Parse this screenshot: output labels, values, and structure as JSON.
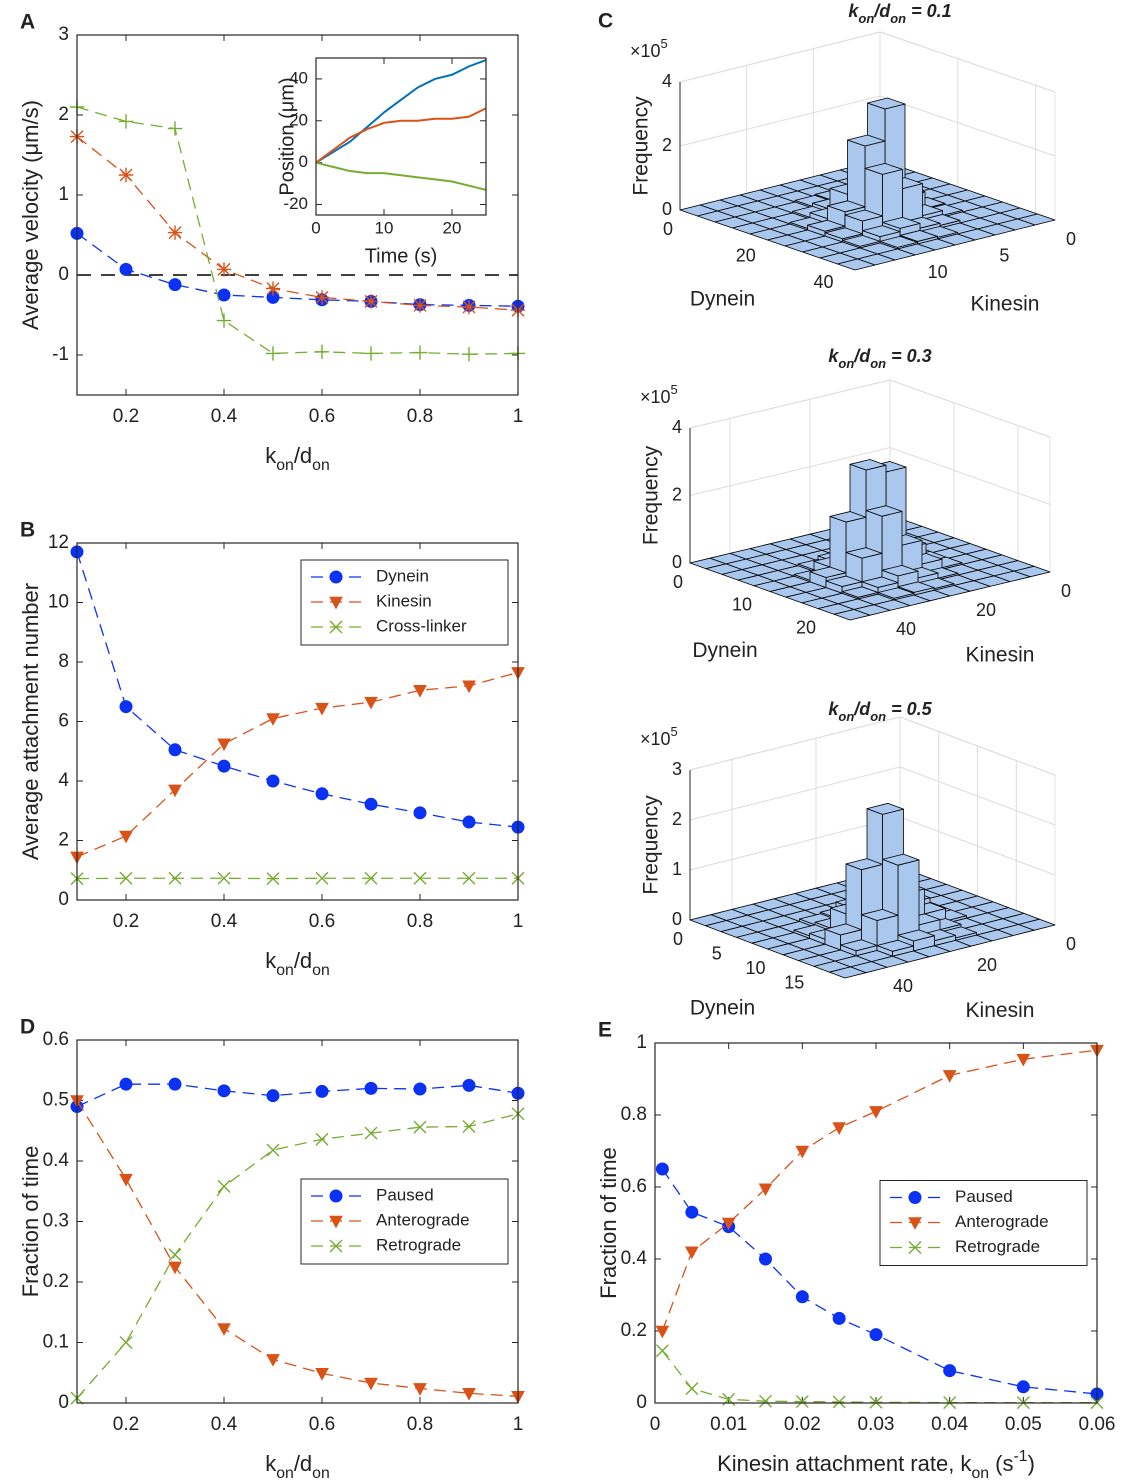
{
  "chart_data": [
    {
      "type": "line",
      "panel_label": "A",
      "x": [
        0.1,
        0.2,
        0.3,
        0.4,
        0.5,
        0.6,
        0.7,
        0.8,
        0.9,
        1
      ],
      "xlim": [
        0.1,
        1
      ],
      "xticks": [
        0.2,
        0.4,
        0.6,
        0.8,
        1
      ],
      "ylim": [
        -1.5,
        3
      ],
      "yticks": [
        -1,
        0,
        1,
        2,
        3
      ],
      "xlabel": [
        {
          "text": "k"
        },
        {
          "text": "on",
          "shift": "sub"
        },
        {
          "text": "/d"
        },
        {
          "text": "on",
          "shift": "sub"
        }
      ],
      "ylabel": "Average velocity (μm/s)",
      "reference_line": 0,
      "series": [
        {
          "color": "#0b31f3",
          "marker": "circle",
          "values": [
            0.52,
            0.07,
            -0.12,
            -0.25,
            -0.28,
            -0.31,
            -0.33,
            -0.37,
            -0.38,
            -0.39
          ]
        },
        {
          "color": "#d95319",
          "marker": "asterisk",
          "values": [
            1.73,
            1.25,
            0.53,
            0.07,
            -0.17,
            -0.28,
            -0.33,
            -0.38,
            -0.4,
            -0.44
          ]
        },
        {
          "color": "#77ac30",
          "marker": "plus",
          "values": [
            2.1,
            1.92,
            1.83,
            -0.57,
            -0.98,
            -0.96,
            -0.98,
            -0.97,
            -0.99,
            -0.98
          ]
        }
      ],
      "inset": {
        "type": "line",
        "x": [
          0,
          2.5,
          5,
          7.5,
          10,
          12.5,
          15,
          17.5,
          20,
          22.5,
          25
        ],
        "xlim": [
          0,
          25
        ],
        "xticks": [
          0,
          10,
          20
        ],
        "ylim": [
          -25,
          50
        ],
        "yticks": [
          -20,
          0,
          20,
          40
        ],
        "xlabel": "Time (s)",
        "ylabel": "Position (μm)",
        "series": [
          {
            "color": "#0072bd",
            "values": [
              0,
              5,
              10,
              17,
              24,
              30,
              36,
              40,
              42,
              46,
              49
            ]
          },
          {
            "color": "#d95319",
            "values": [
              0,
              6,
              12,
              16,
              19,
              20,
              20,
              21,
              21,
              22,
              26
            ]
          },
          {
            "color": "#77ac30",
            "values": [
              0,
              -2,
              -4,
              -5,
              -5,
              -6,
              -7,
              -8,
              -9,
              -11,
              -13
            ]
          }
        ]
      }
    },
    {
      "type": "line",
      "panel_label": "B",
      "x": [
        0.1,
        0.2,
        0.3,
        0.4,
        0.5,
        0.6,
        0.7,
        0.8,
        0.9,
        1
      ],
      "xlim": [
        0.1,
        1
      ],
      "xticks": [
        0.2,
        0.4,
        0.6,
        0.8,
        1
      ],
      "ylim": [
        0,
        12
      ],
      "yticks": [
        0,
        2,
        4,
        6,
        8,
        10,
        12
      ],
      "xlabel": [
        {
          "text": "k"
        },
        {
          "text": "on",
          "shift": "sub"
        },
        {
          "text": "/d"
        },
        {
          "text": "on",
          "shift": "sub"
        }
      ],
      "ylabel": "Average attachment number",
      "legend": "northeast",
      "series": [
        {
          "name": "Dynein",
          "color": "#0b31f3",
          "marker": "circle",
          "values": [
            11.7,
            6.5,
            5.05,
            4.5,
            4.0,
            3.57,
            3.22,
            2.93,
            2.62,
            2.45
          ]
        },
        {
          "name": "Kinesin",
          "color": "#d95319",
          "marker": "triangle-down",
          "values": [
            1.45,
            2.15,
            3.7,
            5.25,
            6.1,
            6.45,
            6.65,
            7.05,
            7.2,
            7.65
          ]
        },
        {
          "name": "Cross-linker",
          "color": "#77ac30",
          "marker": "x",
          "values": [
            0.72,
            0.73,
            0.73,
            0.73,
            0.72,
            0.73,
            0.73,
            0.73,
            0.73,
            0.73
          ]
        }
      ]
    },
    {
      "type": "bar3d",
      "panel_label": "C",
      "title": [
        {
          "text": "k"
        },
        {
          "text": "on",
          "shift": "sub"
        },
        {
          "text": "/d"
        },
        {
          "text": "on",
          "shift": "sub"
        },
        {
          "text": " = 0.1"
        }
      ],
      "zlabel": "Frequency",
      "z_multiplier": [
        {
          "text": "×10"
        },
        {
          "text": "5",
          "shift": "super"
        }
      ],
      "xlabel": "Dynein",
      "ylabel": "Kinesin",
      "xlim": [
        0,
        45
      ],
      "xticks": [
        0,
        20,
        40
      ],
      "ylim": [
        0,
        15
      ],
      "yticks": [
        0,
        5,
        10
      ],
      "zlim": [
        0,
        400000
      ],
      "zticks": [
        0,
        {
          "value": 200000,
          "label": "2"
        },
        {
          "value": 400000,
          "label": "4"
        }
      ],
      "color": "#aac7ee",
      "counts": [
        [
          0,
          0,
          0,
          0,
          0,
          0,
          0,
          0,
          0,
          0
        ],
        [
          0,
          0,
          0,
          0,
          0,
          0,
          0,
          0,
          0,
          0
        ],
        [
          0,
          0,
          0,
          5000,
          8000,
          5000,
          0,
          0,
          0,
          0
        ],
        [
          0,
          0,
          5000,
          10000,
          20000,
          15000,
          5000,
          0,
          0,
          0
        ],
        [
          0,
          0,
          5000,
          30000,
          150000,
          80000,
          20000,
          5000,
          0,
          0
        ],
        [
          0,
          0,
          8000,
          60000,
          350000,
          250000,
          60000,
          15000,
          0,
          0
        ],
        [
          0,
          0,
          5000,
          20000,
          120000,
          180000,
          50000,
          10000,
          0,
          0
        ],
        [
          0,
          0,
          0,
          8000,
          15000,
          30000,
          20000,
          5000,
          0,
          0
        ],
        [
          0,
          0,
          0,
          0,
          5000,
          8000,
          5000,
          0,
          0,
          0
        ],
        [
          0,
          0,
          0,
          0,
          0,
          0,
          0,
          0,
          0,
          0
        ]
      ]
    },
    {
      "type": "bar3d",
      "title": [
        {
          "text": "k"
        },
        {
          "text": "on",
          "shift": "sub"
        },
        {
          "text": "/d"
        },
        {
          "text": "on",
          "shift": "sub"
        },
        {
          "text": " = 0.3"
        }
      ],
      "zlabel": "Frequency",
      "z_multiplier": [
        {
          "text": "×10"
        },
        {
          "text": "5",
          "shift": "super"
        }
      ],
      "xlabel": "Dynein",
      "ylabel": "Kinesin",
      "xlim": [
        0,
        25
      ],
      "xticks": [
        0,
        10,
        20
      ],
      "ylim": [
        0,
        50
      ],
      "yticks": [
        0,
        20,
        40
      ],
      "zlim": [
        0,
        400000
      ],
      "zticks": [
        0,
        {
          "value": 200000,
          "label": "2"
        },
        {
          "value": 400000,
          "label": "4"
        }
      ],
      "color": "#aac7ee",
      "counts": [
        [
          0,
          0,
          0,
          0,
          0,
          0,
          0,
          0,
          0,
          0
        ],
        [
          0,
          0,
          0,
          0,
          0,
          0,
          0,
          0,
          0,
          0
        ],
        [
          0,
          0,
          0,
          0,
          0,
          0,
          0,
          0,
          0,
          0
        ],
        [
          0,
          0,
          0,
          5000,
          10000,
          15000,
          5000,
          0,
          0,
          0
        ],
        [
          0,
          0,
          5000,
          20000,
          40000,
          110000,
          30000,
          5000,
          0,
          0
        ],
        [
          0,
          0,
          5000,
          60000,
          300000,
          320000,
          180000,
          30000,
          0,
          0
        ],
        [
          0,
          0,
          5000,
          30000,
          100000,
          200000,
          90000,
          20000,
          0,
          0
        ],
        [
          0,
          0,
          0,
          5000,
          20000,
          40000,
          20000,
          5000,
          0,
          0
        ],
        [
          0,
          0,
          0,
          0,
          5000,
          8000,
          5000,
          0,
          0,
          0
        ],
        [
          0,
          0,
          0,
          0,
          0,
          0,
          0,
          0,
          0,
          0
        ]
      ]
    },
    {
      "type": "bar3d",
      "title": [
        {
          "text": "k"
        },
        {
          "text": "on",
          "shift": "sub"
        },
        {
          "text": "/d"
        },
        {
          "text": "on",
          "shift": "sub"
        },
        {
          "text": " = 0.5"
        }
      ],
      "zlabel": "Frequency",
      "z_multiplier": [
        {
          "text": "×10"
        },
        {
          "text": "5",
          "shift": "super"
        }
      ],
      "xlabel": "Dynein",
      "ylabel": "Kinesin",
      "xlim": [
        0,
        20
      ],
      "xticks": [
        0,
        5,
        10,
        15
      ],
      "ylim": [
        0,
        50
      ],
      "yticks": [
        0,
        20,
        40
      ],
      "zlim": [
        0,
        300000
      ],
      "zticks": [
        0,
        {
          "value": 100000,
          "label": "1"
        },
        {
          "value": 200000,
          "label": "2"
        },
        {
          "value": 300000,
          "label": "3"
        }
      ],
      "color": "#aac7ee",
      "counts": [
        [
          0,
          0,
          0,
          0,
          0,
          0,
          0,
          0,
          0,
          0
        ],
        [
          0,
          0,
          0,
          0,
          0,
          0,
          0,
          0,
          0,
          0
        ],
        [
          0,
          0,
          0,
          0,
          0,
          0,
          0,
          0,
          0,
          0
        ],
        [
          0,
          0,
          0,
          5000,
          8000,
          8000,
          5000,
          0,
          0,
          0
        ],
        [
          0,
          0,
          5000,
          20000,
          30000,
          40000,
          10000,
          5000,
          0,
          0
        ],
        [
          0,
          0,
          5000,
          40000,
          60000,
          110000,
          50000,
          10000,
          0,
          0
        ],
        [
          0,
          0,
          5000,
          30000,
          80000,
          250000,
          150000,
          30000,
          0,
          0
        ],
        [
          0,
          0,
          0,
          10000,
          30000,
          160000,
          60000,
          10000,
          0,
          0
        ],
        [
          0,
          0,
          0,
          5000,
          10000,
          20000,
          10000,
          0,
          0,
          0
        ],
        [
          0,
          0,
          0,
          0,
          0,
          0,
          0,
          0,
          0,
          0
        ]
      ]
    },
    {
      "type": "line",
      "panel_label": "D",
      "x": [
        0.1,
        0.2,
        0.3,
        0.4,
        0.5,
        0.6,
        0.7,
        0.8,
        0.9,
        1
      ],
      "xlim": [
        0.1,
        1
      ],
      "xticks": [
        0.2,
        0.4,
        0.6,
        0.8,
        1
      ],
      "ylim": [
        0,
        0.6
      ],
      "yticks": [
        0,
        0.1,
        0.2,
        0.3,
        0.4,
        0.5,
        0.6
      ],
      "xlabel": [
        {
          "text": "k"
        },
        {
          "text": "on",
          "shift": "sub"
        },
        {
          "text": "/d"
        },
        {
          "text": "on",
          "shift": "sub"
        }
      ],
      "ylabel": "Fraction of time",
      "legend": "east",
      "series": [
        {
          "name": "Paused",
          "color": "#0b31f3",
          "marker": "circle",
          "values": [
            0.49,
            0.527,
            0.527,
            0.516,
            0.508,
            0.515,
            0.52,
            0.519,
            0.525,
            0.512
          ]
        },
        {
          "name": "Anterograde",
          "color": "#d95319",
          "marker": "triangle-down",
          "values": [
            0.5,
            0.37,
            0.225,
            0.123,
            0.072,
            0.049,
            0.033,
            0.024,
            0.016,
            0.011
          ]
        },
        {
          "name": "Retrograde",
          "color": "#77ac30",
          "marker": "x",
          "values": [
            0.008,
            0.1,
            0.245,
            0.358,
            0.418,
            0.436,
            0.446,
            0.456,
            0.457,
            0.478
          ]
        }
      ]
    },
    {
      "type": "line",
      "panel_label": "E",
      "x": [
        0.001,
        0.005,
        0.01,
        0.015,
        0.02,
        0.025,
        0.03,
        0.04,
        0.05,
        0.06
      ],
      "xlim": [
        0,
        0.06
      ],
      "xticks": [
        0,
        0.01,
        0.02,
        0.03,
        0.04,
        0.05,
        0.06
      ],
      "ylim": [
        0,
        1
      ],
      "yticks": [
        0,
        0.2,
        0.4,
        0.6,
        0.8,
        1
      ],
      "xlabel": [
        {
          "text": "Kinesin attachment rate, k"
        },
        {
          "text": "on",
          "shift": "sub"
        },
        {
          "text": " (s"
        },
        {
          "text": "-1",
          "shift": "super"
        },
        {
          "text": ")"
        }
      ],
      "ylabel": "Fraction of time",
      "legend": "east",
      "series": [
        {
          "name": "Paused",
          "color": "#0b31f3",
          "marker": "circle",
          "values": [
            0.65,
            0.53,
            0.49,
            0.4,
            0.295,
            0.235,
            0.19,
            0.09,
            0.045,
            0.025
          ]
        },
        {
          "name": "Anterograde",
          "color": "#d95319",
          "marker": "triangle-down",
          "values": [
            0.2,
            0.42,
            0.5,
            0.595,
            0.7,
            0.765,
            0.81,
            0.91,
            0.955,
            0.98
          ]
        },
        {
          "name": "Retrograde",
          "color": "#77ac30",
          "marker": "x",
          "values": [
            0.145,
            0.04,
            0.01,
            0.005,
            0.004,
            0.003,
            0.002,
            0.001,
            0.001,
            0.001
          ]
        }
      ]
    }
  ]
}
